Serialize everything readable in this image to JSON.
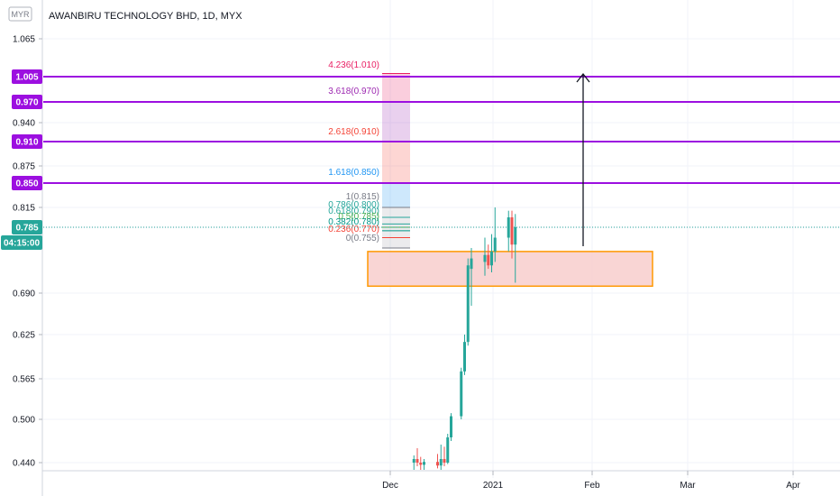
{
  "header": {
    "currency_badge": "MYR",
    "symbol_title": "AWANBIRU TECHNOLOGY BHD, 1D, MYX"
  },
  "chart_data": {
    "type": "candlestick",
    "title": "AWANBIRU TECHNOLOGY BHD, 1D, MYX",
    "y_ticks": [
      "1.065",
      "1.005",
      "0.970",
      "0.940",
      "0.910",
      "0.875",
      "0.850",
      "0.815",
      "0.785",
      "0.690",
      "0.625",
      "0.565",
      "0.500",
      "0.440"
    ],
    "x_ticks": [
      "Dec",
      "2021",
      "Feb",
      "Mar",
      "Apr"
    ],
    "last_price": "0.785",
    "countdown": "04:15:00",
    "price_levels": [
      "1.005",
      "0.970",
      "0.910",
      "0.850"
    ],
    "fib_labels": [
      "4.236(1.010)",
      "3.618(0.970)",
      "2.618(0.910)",
      "1.618(0.850)",
      "1(0.815)",
      "0.786(0.800)",
      "0.618(0.790)",
      "0.5(0.785)",
      "0.382(0.780)",
      "0.236(0.770)",
      "0(0.755)"
    ],
    "candles": [
      {
        "date": "2020-12-07",
        "o": 0.44,
        "h": 0.45,
        "l": 0.43,
        "c": 0.445
      },
      {
        "date": "2020-12-08",
        "o": 0.445,
        "h": 0.46,
        "l": 0.435,
        "c": 0.44
      },
      {
        "date": "2020-12-09",
        "o": 0.44,
        "h": 0.448,
        "l": 0.43,
        "c": 0.437
      },
      {
        "date": "2020-12-10",
        "o": 0.437,
        "h": 0.445,
        "l": 0.43,
        "c": 0.441
      },
      {
        "date": "2020-12-14",
        "o": 0.441,
        "h": 0.452,
        "l": 0.432,
        "c": 0.436
      },
      {
        "date": "2020-12-15",
        "o": 0.436,
        "h": 0.465,
        "l": 0.43,
        "c": 0.445
      },
      {
        "date": "2020-12-16",
        "o": 0.445,
        "h": 0.462,
        "l": 0.435,
        "c": 0.44
      },
      {
        "date": "2020-12-17",
        "o": 0.44,
        "h": 0.48,
        "l": 0.438,
        "c": 0.475
      },
      {
        "date": "2020-12-18",
        "o": 0.475,
        "h": 0.51,
        "l": 0.47,
        "c": 0.505
      },
      {
        "date": "2020-12-21",
        "o": 0.505,
        "h": 0.58,
        "l": 0.5,
        "c": 0.575
      },
      {
        "date": "2020-12-22",
        "o": 0.575,
        "h": 0.625,
        "l": 0.57,
        "c": 0.615
      },
      {
        "date": "2020-12-23",
        "o": 0.615,
        "h": 0.74,
        "l": 0.61,
        "c": 0.73
      },
      {
        "date": "2020-12-24",
        "o": 0.725,
        "h": 0.755,
        "l": 0.67,
        "c": 0.74
      },
      {
        "date": "2020-12-28",
        "o": 0.735,
        "h": 0.77,
        "l": 0.715,
        "c": 0.745
      },
      {
        "date": "2020-12-29",
        "o": 0.745,
        "h": 0.76,
        "l": 0.725,
        "c": 0.73
      },
      {
        "date": "2020-12-30",
        "o": 0.73,
        "h": 0.775,
        "l": 0.72,
        "c": 0.75
      },
      {
        "date": "2020-12-31",
        "o": 0.75,
        "h": 0.815,
        "l": 0.735,
        "c": 0.77
      },
      {
        "date": "2021-01-04",
        "o": 0.77,
        "h": 0.81,
        "l": 0.75,
        "c": 0.8
      },
      {
        "date": "2021-01-05",
        "o": 0.8,
        "h": 0.81,
        "l": 0.74,
        "c": 0.76
      },
      {
        "date": "2021-01-06",
        "o": 0.76,
        "h": 0.805,
        "l": 0.705,
        "c": 0.785
      }
    ],
    "colors": {
      "up": "#26a69a",
      "down": "#ef5350",
      "level": "#9c0fe0",
      "zone_fill": "#f8cecc",
      "zone_border": "#ff9800",
      "last_price": "#26a69a"
    }
  }
}
